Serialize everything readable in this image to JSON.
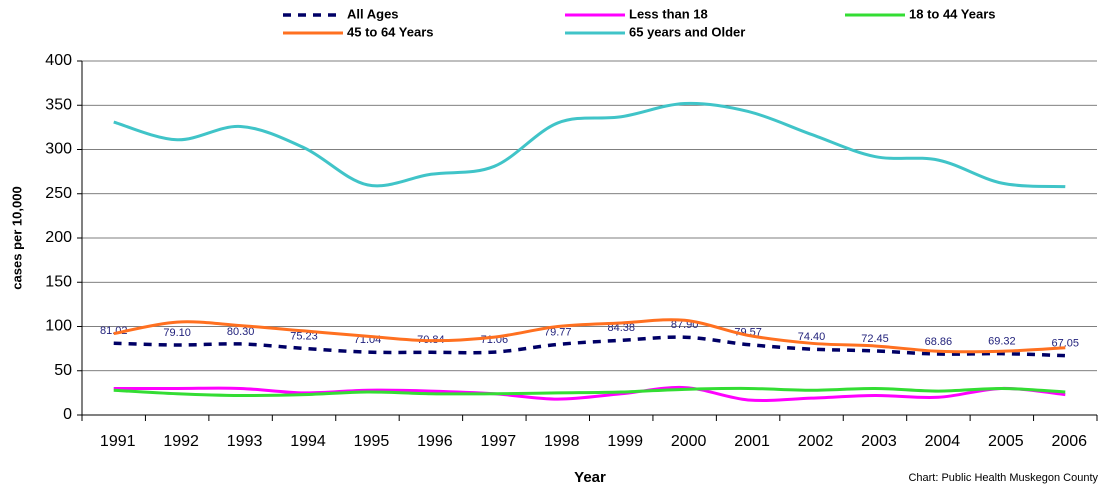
{
  "chart_data": {
    "type": "line",
    "x_label": "Year",
    "y_label": "cases per 10,000",
    "source": "Chart: Public Health Muskegon County",
    "categories": [
      "1991",
      "1992",
      "1993",
      "1994",
      "1995",
      "1996",
      "1997",
      "1998",
      "1999",
      "2000",
      "2001",
      "2002",
      "2003",
      "2004",
      "2005",
      "2006"
    ],
    "ylim": [
      0,
      400
    ],
    "yticks": [
      0,
      50,
      100,
      150,
      200,
      250,
      300,
      350,
      400
    ],
    "grid": true,
    "series": [
      {
        "name": "All Ages",
        "color": "#000066",
        "dashed": true,
        "values": [
          81.02,
          79.1,
          80.3,
          75.23,
          71.04,
          70.84,
          71.06,
          79.77,
          84.38,
          87.9,
          79.57,
          74.4,
          72.45,
          68.86,
          69.32,
          67.05
        ],
        "value_labels": [
          "81.02",
          "79.10",
          "80.30",
          "75.23",
          "71.04",
          "70.84",
          "71.06",
          "79.77",
          "84.38",
          "87.90",
          "79.57",
          "74.40",
          "72.45",
          "68.86",
          "69.32",
          "67.05"
        ]
      },
      {
        "name": "Less than 18",
        "color": "#ff00ff",
        "values": [
          30,
          30,
          30,
          25,
          28,
          27,
          24,
          18,
          24,
          31,
          17,
          19,
          22,
          20,
          30,
          23
        ]
      },
      {
        "name": "18 to 44 Years",
        "color": "#33dd33",
        "values": [
          28,
          24,
          22,
          23,
          26,
          24,
          24,
          25,
          26,
          29,
          30,
          28,
          30,
          27,
          30,
          26
        ]
      },
      {
        "name": "45 to 64 Years",
        "color": "#ff7020",
        "values": [
          92,
          105,
          101,
          95,
          89,
          84,
          88,
          100,
          104,
          107,
          90,
          81,
          78,
          72,
          72,
          76
        ]
      },
      {
        "name": "65 years and Older",
        "color": "#40c4c8",
        "values": [
          331,
          311,
          326,
          302,
          260,
          272,
          281,
          330,
          337,
          352,
          343,
          317,
          292,
          288,
          262,
          258
        ]
      }
    ]
  }
}
